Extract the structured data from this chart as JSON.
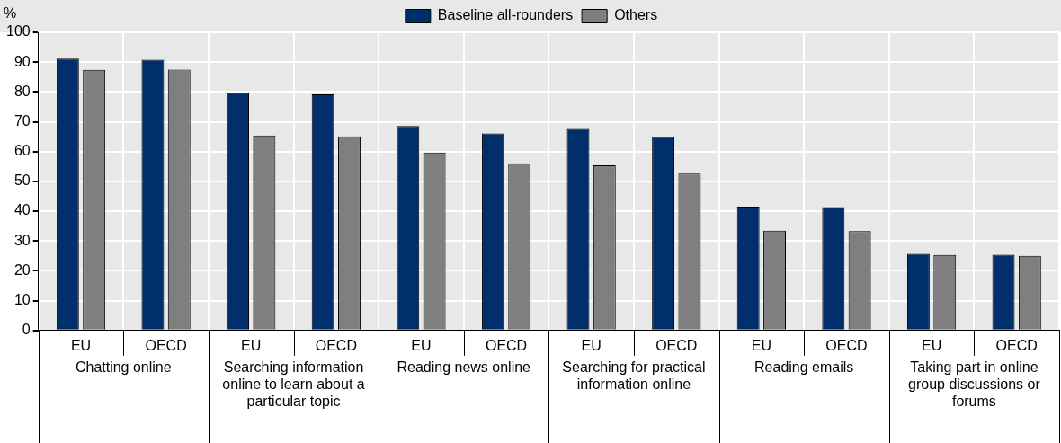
{
  "chart_data": {
    "type": "bar",
    "ylabel": "%",
    "categories": [
      "EU",
      "OECD",
      "EU",
      "OECD",
      "EU",
      "OECD",
      "EU",
      "OECD",
      "EU",
      "OECD",
      "EU",
      "OECD"
    ],
    "series": [
      {
        "name": "Baseline all-rounders",
        "color": "#002f6c",
        "values": [
          91.2,
          90.8,
          79.6,
          79.2,
          68.6,
          66.1,
          67.6,
          64.9,
          41.5,
          41.4,
          25.7,
          25.4
        ]
      },
      {
        "name": "Others",
        "color": "#7f7f7f",
        "values": [
          87.4,
          87.5,
          65.4,
          65.1,
          59.7,
          56.1,
          55.4,
          52.6,
          33.5,
          33.3,
          25.3,
          25.0
        ]
      }
    ],
    "annotations": [
      "Chatting online",
      "Searching information online to learn about a particular topic",
      "Reading news online",
      "Searching for practical information online",
      "Reading emails",
      "Taking part in online group discussions or forums"
    ],
    "ylim": [
      0,
      100
    ],
    "yticks": [
      0,
      10,
      20,
      30,
      40,
      50,
      60,
      70,
      80,
      90,
      100
    ],
    "grid": true,
    "legend": "top"
  }
}
